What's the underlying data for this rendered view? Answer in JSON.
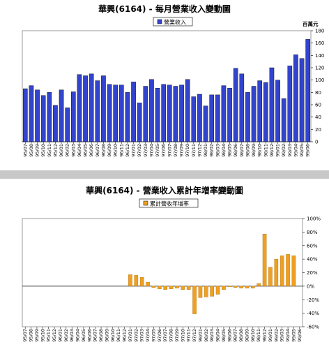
{
  "chart_data": [
    {
      "type": "bar",
      "title": "華興(6164) - 每月營業收入變動圖",
      "legend": "營業收入",
      "legend_position": "top-center",
      "unit_label": "百萬元",
      "ylim": [
        0,
        180
      ],
      "yticks": [
        "0",
        "20",
        "40",
        "60",
        "80",
        "100",
        "120",
        "140",
        "160",
        "180"
      ],
      "grid": false,
      "bar_color": "#3344cc",
      "categories": [
        "95/07",
        "95/08",
        "95/09",
        "95/10",
        "95/11",
        "95/12",
        "96/01",
        "96/02",
        "96/03",
        "96/04",
        "96/05",
        "96/06",
        "96/07",
        "96/08",
        "96/09",
        "96/10",
        "96/11",
        "96/12",
        "97/01",
        "97/02",
        "97/03",
        "97/04",
        "97/05",
        "97/06",
        "97/07",
        "97/08",
        "97/09",
        "97/10",
        "97/11",
        "97/12",
        "98/01",
        "98/02",
        "98/03",
        "98/04",
        "98/05",
        "98/06",
        "98/07",
        "98/08",
        "98/09",
        "98/10",
        "98/11",
        "98/12",
        "99/01",
        "99/02",
        "99/03",
        "99/04",
        "99/05",
        "99/06"
      ],
      "values": [
        86,
        91,
        84,
        75,
        80,
        59,
        84,
        55,
        81,
        109,
        107,
        110,
        99,
        107,
        93,
        92,
        92,
        80,
        97,
        63,
        90,
        101,
        87,
        93,
        92,
        90,
        92,
        101,
        73,
        77,
        58,
        76,
        76,
        91,
        87,
        119,
        110,
        80,
        90,
        99,
        96,
        120,
        100,
        70,
        123,
        141,
        135,
        166
      ]
    },
    {
      "type": "bar",
      "title": "華興(6164) - 營業收入累計年增率變動圖",
      "legend": "累計營收年增率",
      "legend_position": "top-center",
      "ylim": [
        -60,
        100
      ],
      "yticks": [
        "-60%",
        "-40%",
        "-20%",
        "0%",
        "20%",
        "40%",
        "60%",
        "80%",
        "100%"
      ],
      "grid": false,
      "bar_color": "#f0a020",
      "categories": [
        "95/07",
        "95/08",
        "95/09",
        "95/10",
        "95/11",
        "95/12",
        "96/01",
        "96/02",
        "96/03",
        "96/04",
        "96/05",
        "96/06",
        "96/07",
        "96/08",
        "96/09",
        "96/10",
        "96/11",
        "96/12",
        "97/01",
        "97/02",
        "97/03",
        "97/04",
        "97/05",
        "97/06",
        "97/07",
        "97/08",
        "97/09",
        "97/10",
        "97/11",
        "97/12",
        "98/01",
        "98/02",
        "98/03",
        "98/04",
        "98/05",
        "98/06",
        "98/07",
        "98/08",
        "98/09",
        "98/10",
        "98/11",
        "98/12",
        "99/01",
        "99/02",
        "99/03",
        "99/04",
        "99/05",
        "99/06"
      ],
      "values": [
        0,
        0,
        0,
        0,
        0,
        0,
        0,
        0,
        0,
        0,
        0,
        0,
        0,
        0,
        0,
        0,
        0,
        0,
        17,
        16,
        13,
        6,
        -2,
        -4,
        -5,
        -4,
        -3,
        -5,
        -5,
        -41,
        -17,
        -16,
        -15,
        -12,
        -5,
        -1,
        -2,
        -3,
        -3,
        -3,
        4,
        77,
        28,
        40,
        45,
        47,
        45,
        0
      ]
    }
  ]
}
